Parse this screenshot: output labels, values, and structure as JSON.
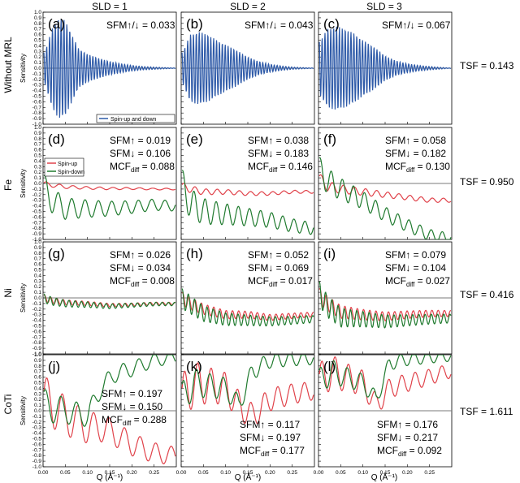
{
  "figure": {
    "column_headers": [
      "SLD = 1",
      "SLD = 2",
      "SLD = 3"
    ],
    "row_labels": [
      "Without MRL",
      "Fe",
      "Ni",
      "CoTi"
    ],
    "tsf_labels": [
      "TSF = 0.143",
      "TSF = 0.950",
      "TSF = 0.416",
      "TSF = 1.611"
    ],
    "xlabel": "Q (Å⁻¹)",
    "ylabel": "Sensitivity",
    "colors": {
      "spin_up": "#e0424a",
      "spin_down": "#1f7a2e",
      "spin_both": "#2e5aa8",
      "zero_line": "#7a7a7a"
    }
  },
  "chart_data": [
    {
      "panel": "(a)",
      "type": "line",
      "xlim": [
        0,
        0.3
      ],
      "ylim": [
        -1,
        1
      ],
      "xticks": [
        "0.00",
        "0.05",
        "0.10",
        "0.15",
        "0.20",
        "0.25"
      ],
      "yticks": [
        "-1.0",
        "-0.9",
        "-0.8",
        "-0.7",
        "-0.6",
        "-0.5",
        "-0.4",
        "-0.3",
        "-0.2",
        "-0.1",
        "0.0",
        "0.1",
        "0.2",
        "0.3",
        "0.4",
        "0.5",
        "0.6",
        "0.7",
        "0.8",
        "0.9",
        "1.0"
      ],
      "annotations": [
        "SFM↑/↓ = 0.033"
      ],
      "legend": [
        "Spin-up and down"
      ],
      "series": [
        {
          "name": "Spin-up and down",
          "color": "#2e5aa8",
          "x": [
            0.005,
            0.02,
            0.035,
            0.05,
            0.065,
            0.08,
            0.1,
            0.125,
            0.15,
            0.175,
            0.2,
            0.225,
            0.25,
            0.275,
            0.29
          ],
          "amp": [
            0.3,
            0.7,
            0.9,
            0.85,
            0.6,
            0.35,
            0.25,
            0.18,
            0.12,
            0.08,
            0.05,
            0.03,
            0.02,
            0.01,
            0.005
          ],
          "period": 0.0065
        }
      ]
    },
    {
      "panel": "(b)",
      "type": "line",
      "xlim": [
        0,
        0.3
      ],
      "ylim": [
        -1,
        1
      ],
      "annotations": [
        "SFM↑/↓ = 0.043"
      ],
      "series": [
        {
          "name": "Spin-up and down",
          "color": "#2e5aa8",
          "x": [
            0.005,
            0.02,
            0.04,
            0.06,
            0.08,
            0.1,
            0.125,
            0.15,
            0.175,
            0.2,
            0.225,
            0.25,
            0.275,
            0.29
          ],
          "amp": [
            0.3,
            0.6,
            0.65,
            0.6,
            0.5,
            0.42,
            0.32,
            0.2,
            0.12,
            0.07,
            0.04,
            0.02,
            0.01,
            0.005
          ],
          "period": 0.0065
        }
      ]
    },
    {
      "panel": "(c)",
      "type": "line",
      "xlim": [
        0,
        0.3
      ],
      "ylim": [
        -1,
        1
      ],
      "annotations": [
        "SFM↑/↓ = 0.067"
      ],
      "series": [
        {
          "name": "Spin-up and down",
          "color": "#2e5aa8",
          "x": [
            0.005,
            0.02,
            0.04,
            0.06,
            0.08,
            0.1,
            0.125,
            0.15,
            0.175,
            0.2,
            0.225,
            0.25,
            0.275,
            0.29
          ],
          "amp": [
            0.5,
            0.7,
            0.75,
            0.7,
            0.62,
            0.5,
            0.38,
            0.22,
            0.13,
            0.08,
            0.05,
            0.03,
            0.015,
            0.005
          ],
          "period": 0.0065
        }
      ]
    },
    {
      "panel": "(d)",
      "type": "line",
      "xlim": [
        0,
        0.3
      ],
      "ylim": [
        -1,
        1
      ],
      "annotations": [
        "SFM↑ = 0.019",
        "SFM↓ = 0.106",
        "MCFdiff = 0.088"
      ],
      "legend": [
        "Spin-up",
        "Spin-down"
      ],
      "series": [
        {
          "name": "Spin-up",
          "color": "#e0424a",
          "x": [
            0,
            0.02,
            0.05,
            0.1,
            0.15,
            0.2,
            0.25,
            0.29
          ],
          "y": [
            0,
            -0.03,
            -0.06,
            -0.08,
            -0.09,
            -0.09,
            -0.1,
            -0.1
          ],
          "osc": 0.04,
          "period": 0.03
        },
        {
          "name": "Spin-down",
          "color": "#1f7a2e",
          "x": [
            0,
            0.02,
            0.05,
            0.1,
            0.15,
            0.2,
            0.25,
            0.29
          ],
          "y": [
            -0.05,
            -0.3,
            -0.45,
            -0.45,
            -0.45,
            -0.42,
            -0.38,
            -0.4
          ],
          "osc": 0.25,
          "period": 0.03
        }
      ]
    },
    {
      "panel": "(e)",
      "type": "line",
      "xlim": [
        0,
        0.3
      ],
      "ylim": [
        -1,
        1
      ],
      "annotations": [
        "SFM↑ = 0.038",
        "SFM↓ = 0.183",
        "MCFdiff = 0.146"
      ],
      "series": [
        {
          "name": "Spin-up",
          "color": "#e0424a",
          "x": [
            0,
            0.02,
            0.05,
            0.1,
            0.15,
            0.2,
            0.25,
            0.29
          ],
          "y": [
            -0.05,
            -0.1,
            -0.15,
            -0.15,
            -0.18,
            -0.18,
            -0.15,
            -0.15
          ],
          "osc": 0.07,
          "period": 0.025
        },
        {
          "name": "Spin-down",
          "color": "#1f7a2e",
          "x": [
            0,
            0.02,
            0.05,
            0.1,
            0.15,
            0.2,
            0.25,
            0.29
          ],
          "y": [
            0.0,
            -0.35,
            -0.5,
            -0.55,
            -0.6,
            -0.65,
            -0.75,
            -0.8
          ],
          "osc": 0.3,
          "period": 0.025
        }
      ]
    },
    {
      "panel": "(f)",
      "type": "line",
      "xlim": [
        0,
        0.3
      ],
      "ylim": [
        -1,
        1
      ],
      "annotations": [
        "SFM↑ = 0.058",
        "SFM↓ = 0.182",
        "MCFdiff = 0.130"
      ],
      "series": [
        {
          "name": "Spin-up",
          "color": "#e0424a",
          "x": [
            0,
            0.02,
            0.05,
            0.1,
            0.15,
            0.2,
            0.25,
            0.29
          ],
          "y": [
            0.1,
            -0.05,
            -0.1,
            -0.15,
            -0.2,
            -0.25,
            -0.3,
            -0.3
          ],
          "osc": 0.1,
          "period": 0.025
        },
        {
          "name": "Spin-down",
          "color": "#1f7a2e",
          "x": [
            0,
            0.02,
            0.05,
            0.1,
            0.15,
            0.2,
            0.25,
            0.29
          ],
          "y": [
            0.25,
            0.05,
            -0.1,
            -0.3,
            -0.55,
            -0.75,
            -0.92,
            -0.97
          ],
          "osc": 0.25,
          "period": 0.025
        }
      ]
    },
    {
      "panel": "(g)",
      "type": "line",
      "xlim": [
        0,
        0.3
      ],
      "ylim": [
        -1,
        1
      ],
      "annotations": [
        "SFM↑ = 0.026",
        "SFM↓ = 0.034",
        "MCFdiff = 0.008"
      ],
      "series": [
        {
          "name": "Spin-up",
          "color": "#e0424a",
          "x": [
            0,
            0.02,
            0.05,
            0.1,
            0.15,
            0.2,
            0.25,
            0.29
          ],
          "y": [
            0,
            -0.05,
            -0.08,
            -0.1,
            -0.13,
            -0.12,
            -0.1,
            -0.1
          ],
          "osc": 0.06,
          "period": 0.014
        },
        {
          "name": "Spin-down",
          "color": "#1f7a2e",
          "x": [
            0,
            0.02,
            0.05,
            0.1,
            0.15,
            0.2,
            0.25,
            0.29
          ],
          "y": [
            0,
            -0.06,
            -0.1,
            -0.12,
            -0.15,
            -0.13,
            -0.11,
            -0.11
          ],
          "osc": 0.08,
          "period": 0.014
        }
      ]
    },
    {
      "panel": "(h)",
      "type": "line",
      "xlim": [
        0,
        0.3
      ],
      "ylim": [
        -1,
        1
      ],
      "annotations": [
        "SFM↑ = 0.052",
        "SFM↓ = 0.069",
        "MCFdiff = 0.017"
      ],
      "series": [
        {
          "name": "Spin-up",
          "color": "#e0424a",
          "x": [
            0,
            0.02,
            0.05,
            0.1,
            0.15,
            0.2,
            0.25,
            0.29
          ],
          "y": [
            0,
            -0.1,
            -0.2,
            -0.3,
            -0.3,
            -0.35,
            -0.32,
            -0.3
          ],
          "osc": 0.12,
          "period": 0.014
        },
        {
          "name": "Spin-down",
          "color": "#1f7a2e",
          "x": [
            0,
            0.02,
            0.05,
            0.1,
            0.15,
            0.2,
            0.25,
            0.29
          ],
          "y": [
            0,
            -0.12,
            -0.28,
            -0.38,
            -0.4,
            -0.42,
            -0.4,
            -0.38
          ],
          "osc": 0.18,
          "period": 0.014
        }
      ]
    },
    {
      "panel": "(i)",
      "type": "line",
      "xlim": [
        0,
        0.3
      ],
      "ylim": [
        -1,
        1
      ],
      "annotations": [
        "SFM↑ = 0.079",
        "SFM↓ = 0.104",
        "MCFdiff = 0.027"
      ],
      "series": [
        {
          "name": "Spin-up",
          "color": "#e0424a",
          "x": [
            0,
            0.02,
            0.05,
            0.1,
            0.15,
            0.2,
            0.25,
            0.29
          ],
          "y": [
            0.05,
            -0.1,
            -0.25,
            -0.3,
            -0.33,
            -0.3,
            -0.28,
            -0.28
          ],
          "osc": 0.15,
          "period": 0.014
        },
        {
          "name": "Spin-down",
          "color": "#1f7a2e",
          "x": [
            0,
            0.02,
            0.05,
            0.1,
            0.15,
            0.2,
            0.25,
            0.29
          ],
          "y": [
            0.1,
            -0.15,
            -0.35,
            -0.38,
            -0.42,
            -0.4,
            -0.38,
            -0.37
          ],
          "osc": 0.22,
          "period": 0.014
        }
      ]
    },
    {
      "panel": "(j)",
      "type": "line",
      "xlim": [
        0,
        0.3
      ],
      "ylim": [
        -1,
        1
      ],
      "annotations": [
        "SFM↑ = 0.197",
        "SFM↓ = 0.150",
        "MCFdiff = 0.288"
      ],
      "series": [
        {
          "name": "Spin-up",
          "color": "#e0424a",
          "x": [
            0,
            0.02,
            0.05,
            0.1,
            0.13,
            0.16,
            0.2,
            0.25,
            0.29
          ],
          "y": [
            0.2,
            0.1,
            -0.1,
            -0.3,
            -0.3,
            -0.4,
            -0.6,
            -0.75,
            -0.8
          ],
          "osc": 0.45,
          "period": 0.035
        },
        {
          "name": "Spin-down",
          "color": "#1f7a2e",
          "x": [
            0,
            0.02,
            0.05,
            0.1,
            0.13,
            0.16,
            0.2,
            0.25,
            0.29
          ],
          "y": [
            0.1,
            0.05,
            0,
            -0.1,
            0.4,
            0.65,
            0.75,
            0.9,
            0.95
          ],
          "osc": 0.3,
          "period": 0.035
        }
      ]
    },
    {
      "panel": "(k)",
      "type": "line",
      "xlim": [
        0,
        0.3
      ],
      "ylim": [
        -1,
        1
      ],
      "annotations": [
        "SFM↑ = 0.117",
        "SFM↓ = 0.197",
        "MCFdiff = 0.177"
      ],
      "series": [
        {
          "name": "Spin-up",
          "color": "#e0424a",
          "x": [
            0,
            0.03,
            0.06,
            0.1,
            0.13,
            0.16,
            0.2,
            0.25,
            0.29
          ],
          "y": [
            0.2,
            0.5,
            0.45,
            0.4,
            0.1,
            -0.1,
            0.2,
            0.3,
            0.35
          ],
          "osc": 0.45,
          "period": 0.03
        },
        {
          "name": "Spin-down",
          "color": "#1f7a2e",
          "x": [
            0,
            0.03,
            0.06,
            0.1,
            0.13,
            0.16,
            0.2,
            0.25,
            0.29
          ],
          "y": [
            0.2,
            0.5,
            0.45,
            0.4,
            0.1,
            0.7,
            0.9,
            0.92,
            0.93
          ],
          "osc": 0.3,
          "period": 0.03
        }
      ]
    },
    {
      "panel": "(l)",
      "type": "line",
      "xlim": [
        0,
        0.3
      ],
      "ylim": [
        -1,
        1
      ],
      "annotations": [
        "SFM↑ = 0.176",
        "SFM↓ = 0.217",
        "MCFdiff = 0.092"
      ],
      "series": [
        {
          "name": "Spin-up",
          "color": "#e0424a",
          "x": [
            0,
            0.03,
            0.06,
            0.1,
            0.13,
            0.16,
            0.2,
            0.25,
            0.29
          ],
          "y": [
            0.5,
            0.7,
            0.6,
            0.5,
            0.1,
            0.4,
            0.5,
            0.6,
            0.7
          ],
          "osc": 0.35,
          "period": 0.03
        },
        {
          "name": "Spin-down",
          "color": "#1f7a2e",
          "x": [
            0,
            0.03,
            0.06,
            0.1,
            0.13,
            0.16,
            0.2,
            0.25,
            0.29
          ],
          "y": [
            0.5,
            0.7,
            0.6,
            0.5,
            0.2,
            0.85,
            0.92,
            0.95,
            0.97
          ],
          "osc": 0.25,
          "period": 0.03
        }
      ]
    }
  ]
}
